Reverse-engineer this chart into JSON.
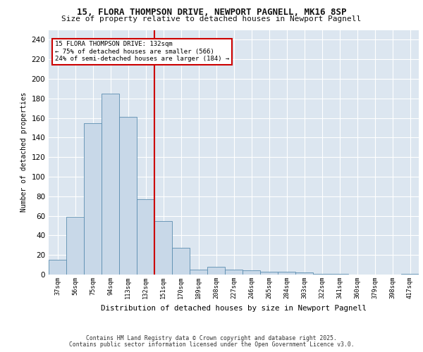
{
  "title_line1": "15, FLORA THOMPSON DRIVE, NEWPORT PAGNELL, MK16 8SP",
  "title_line2": "Size of property relative to detached houses in Newport Pagnell",
  "xlabel": "Distribution of detached houses by size in Newport Pagnell",
  "ylabel": "Number of detached properties",
  "bar_color": "#c8d8e8",
  "bar_edge_color": "#5b8db0",
  "background_color": "#dce6f0",
  "grid_color": "#ffffff",
  "vline_color": "#cc0000",
  "vline_x": 5,
  "categories": [
    "37sqm",
    "56sqm",
    "75sqm",
    "94sqm",
    "113sqm",
    "132sqm",
    "151sqm",
    "170sqm",
    "189sqm",
    "208sqm",
    "227sqm",
    "246sqm",
    "265sqm",
    "284sqm",
    "303sqm",
    "322sqm",
    "341sqm",
    "360sqm",
    "379sqm",
    "398sqm",
    "417sqm"
  ],
  "values": [
    15,
    59,
    155,
    185,
    161,
    77,
    55,
    27,
    5,
    8,
    5,
    4,
    3,
    3,
    2,
    1,
    1,
    0,
    0,
    0,
    1
  ],
  "annotation_title": "15 FLORA THOMPSON DRIVE: 132sqm",
  "annotation_line2": "← 75% of detached houses are smaller (566)",
  "annotation_line3": "24% of semi-detached houses are larger (184) →",
  "annotation_box_color": "#ffffff",
  "annotation_edge_color": "#cc0000",
  "ylim": [
    0,
    250
  ],
  "yticks": [
    0,
    20,
    40,
    60,
    80,
    100,
    120,
    140,
    160,
    180,
    200,
    220,
    240
  ],
  "footer_line1": "Contains HM Land Registry data © Crown copyright and database right 2025.",
  "footer_line2": "Contains public sector information licensed under the Open Government Licence v3.0.",
  "fig_width": 6.0,
  "fig_height": 5.0
}
